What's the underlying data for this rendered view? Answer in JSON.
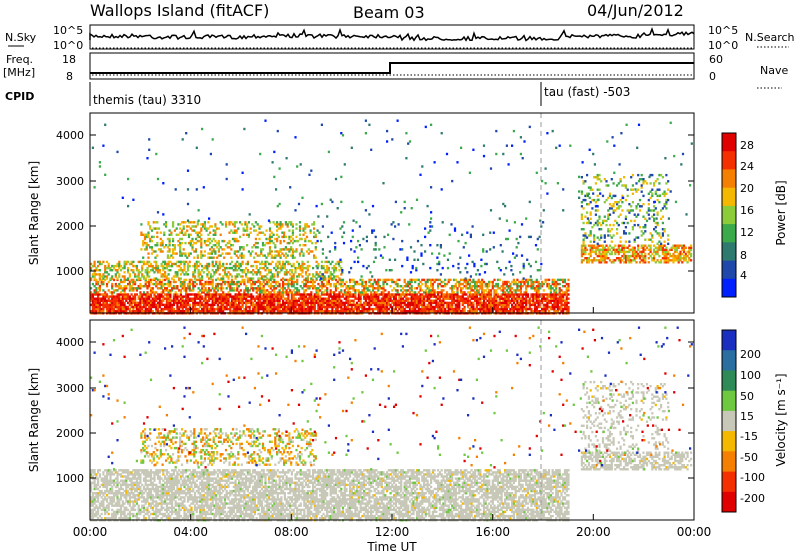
{
  "header": {
    "station": "Wallops Island (fitACF)",
    "beam": "Beam 03",
    "date": "04/Jun/2012"
  },
  "summary": {
    "nsky_label": "N.Sky",
    "nsky_tick_top": "10^5",
    "nsky_tick_bottom": "10^0",
    "nsky_right_top": "10^5",
    "nsky_right_bottom": "10^0",
    "nsearch_label": "N.Search",
    "freq_label": "Freq.",
    "freq_unit": "[MHz]",
    "freq_tick_top": "18",
    "freq_tick_bottom": "8",
    "nave_tick_top": "60",
    "nave_tick_bottom": "0",
    "nave_label": "Nave",
    "cpid_label": "CPID",
    "cpid_mode_1": "themis (tau) 3310",
    "cpid_mode_2": "tau (fast) -503"
  },
  "chart_data": [
    {
      "type": "heatmap",
      "name": "power",
      "ylabel": "Slant Range [km]",
      "yticks": [
        "1000",
        "2000",
        "3000",
        "4000"
      ],
      "ylim": [
        180,
        4500
      ],
      "xlim": [
        0,
        24
      ],
      "colorbar_label": "Power [dB]",
      "colorbar_ticks": [
        "4",
        "8",
        "12",
        "16",
        "20",
        "24",
        "28"
      ],
      "colorbar_colors": [
        "#0020ff",
        "#1f48aa",
        "#2f7a6e",
        "#3aaa4a",
        "#8ccc3a",
        "#f5b800",
        "#f57f00",
        "#f53000",
        "#e00000"
      ]
    },
    {
      "type": "heatmap",
      "name": "velocity",
      "ylabel": "Slant Range [km]",
      "yticks": [
        "1000",
        "2000",
        "3000",
        "4000"
      ],
      "ylim": [
        180,
        4500
      ],
      "xlim": [
        0,
        24
      ],
      "colorbar_label": "Velocity [m s⁻¹]",
      "colorbar_ticks": [
        "200",
        "100",
        "50",
        "15",
        "-15",
        "-50",
        "-100",
        "-200"
      ],
      "colorbar_colors": [
        "#1a2fc0",
        "#2a6fa0",
        "#2e8a56",
        "#6ec840",
        "#c8c8b8",
        "#f5b800",
        "#f57f00",
        "#f53000",
        "#e00000"
      ]
    }
  ],
  "time_axis": {
    "label": "Time UT",
    "ticks": [
      "00:00",
      "04:00",
      "08:00",
      "12:00",
      "16:00",
      "20:00",
      "00:00"
    ]
  }
}
